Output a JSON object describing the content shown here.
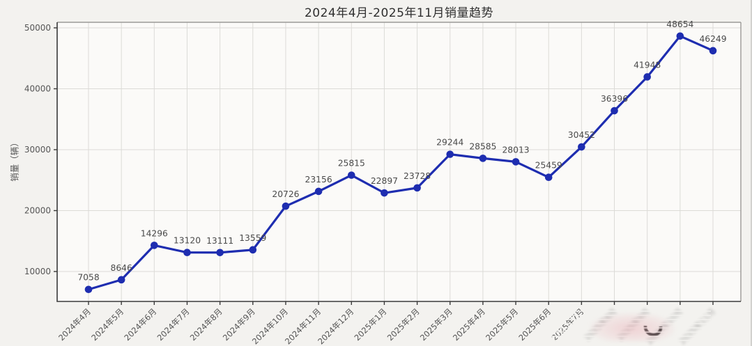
{
  "chart_data": {
    "type": "line",
    "title": "2024年4月-2025年11月销量趋势",
    "xlabel": "",
    "ylabel": "销量（辆）",
    "categories": [
      "2024年4月",
      "2024年5月",
      "2024年6月",
      "2024年7月",
      "2024年8月",
      "2024年9月",
      "2024年10月",
      "2024年11月",
      "2024年12月",
      "2025年1月",
      "2025年2月",
      "2025年3月",
      "2025年4月",
      "2025年5月",
      "2025年6月",
      "2025年7月",
      "2025年8月",
      "2025年9月",
      "2025年10月",
      "2025年11月"
    ],
    "values": [
      7058,
      8646,
      14296,
      13120,
      13111,
      13559,
      20726,
      23156,
      25815,
      22897,
      23728,
      29244,
      28585,
      28013,
      25459,
      30452,
      36396,
      41948,
      48654,
      46249
    ],
    "yticks": [
      10000,
      20000,
      30000,
      40000,
      50000
    ],
    "ylim": [
      5086,
      50914
    ],
    "grid": true,
    "legend": "none",
    "line_color": "#1e2db0",
    "value_label_color": "#4a4a4a",
    "smudged_category_indexes": [
      16,
      17,
      18,
      19
    ]
  }
}
